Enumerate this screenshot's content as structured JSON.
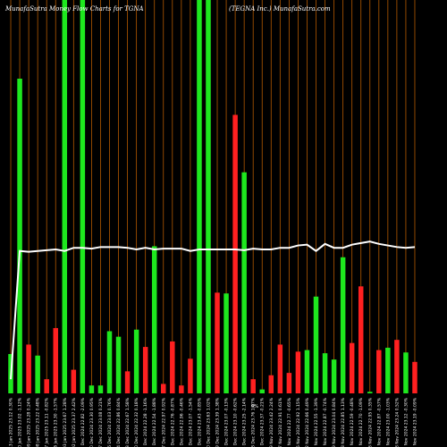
{
  "chart_data": {
    "type": "bar",
    "title_left": "MunafaSutra  Money Flow  Charts for TGNA",
    "title_right": "(TEGNA Inc.) MunafaSutra.com",
    "mid_label": "0%",
    "categories": [
      "Mon 13 Jan 2025 23.12 0.30%",
      "Fri 10 Jan 2025 23.02 -1.12%",
      "Thu 09 Jan 2025 23.28 0.24%",
      "Wed 08 Jan 2025 23.22 0.48%",
      "Tue 07 Jan 2025 23.11 -0.82%",
      "Mon 06 Jan 2025 23.30 -1.57%",
      "Fri 03 Jan 2025 23.67 1.28%",
      "Thu 02 Jan 2025 23.37 2.42%",
      "Tue 31 Dec 2024 22.82 -2.09%",
      "Mon 30 Dec 2024 23.30 0.95%",
      "Fri 27 Dec 2024 23.08 0.21%",
      "Thu 26 Dec 2024 23.03 0.76%",
      "Tue 24 Dec 2024 22.86 0.84%",
      "Mon 23 Dec 2024 22.67 1.58%",
      "Fri 20 Dec 2024 22.32 0.18%",
      "Thu 19 Dec 2024 22.28 -1.16%",
      "Wed 18 Dec 2024 22.54 -1.88%",
      "Tue 17 Dec 2024 22.97 0.92%",
      "Mon 16 Dec 2024 22.76 -0.87%",
      "Fri 13 Dec 2024 22.96 -0.46%",
      "Thu 12 Dec 2024 23.07 -1.54%",
      "Wed 11 Dec 2024 23.43 -0.85%",
      "Tue 10 Dec 2024 23.63 1.02%",
      "Mon 09 Dec 2024 23.39 1.38%",
      "Fri 06 Dec 2024 23.07 -0.13%",
      "Thu 05 Dec 2024 23.10 -0.62%",
      "Wed 04 Dec 2024 23.25 -2.14%",
      "Tue 03 Dec 2024 23.76 1.67%",
      "Mon 02 Dec 2024 23.37 -0.21%",
      "Fri 29 Nov 2024 23.42 2.24%",
      "Wed 27 Nov 2024 22.91 0.61%",
      "Tue 26 Nov 2024 22.77 -0.65%",
      "Mon 25 Nov 2024 22.92 1.15%",
      "Fri 22 Nov 2024 22.66 0.49%",
      "Thu 21 Nov 2024 22.55 -1.39%",
      "Wed 20 Nov 2024 22.87 -0.74%",
      "Tue 19 Nov 2024 23.04 0.84%",
      "Mon 18 Nov 2024 22.85 1.13%",
      "Fri 15 Nov 2024 22.59 -0.48%",
      "Thu 14 Nov 2024 22.70 -1.09%",
      "Wed 13 Nov 2024 22.95 0.35%",
      "Tue 12 Nov 2024 22.87 -0.57%",
      "Mon 11 Nov 2024 23.00 -1.03%",
      "Fri 08 Nov 2024 23.24 0.52%",
      "Thu 07 Nov 2024 23.12 -0.30%",
      "Wed 06 Nov 2024 23.19 -0.09%"
    ],
    "series": [
      {
        "values": [
          50,
          400,
          62,
          48,
          18,
          83,
          500,
          30,
          500,
          10,
          10,
          79,
          72,
          28,
          81,
          59,
          187,
          12,
          66,
          10,
          44,
          500,
          500,
          128,
          127,
          354,
          281,
          18,
          5,
          23,
          62,
          26,
          53,
          55,
          123,
          51,
          43,
          173,
          64,
          136,
          2,
          55,
          58,
          68,
          52,
          40
        ],
        "colors": [
          "#1ee81e",
          "#1ee81e",
          "#ff2020",
          "#1ee81e",
          "#ff2020",
          "#ff2020",
          "#1ee81e",
          "#ff2020",
          "#1ee81e",
          "#1ee81e",
          "#1ee81e",
          "#1ee81e",
          "#1ee81e",
          "#ff2020",
          "#1ee81e",
          "#ff2020",
          "#1ee81e",
          "#ff2020",
          "#ff2020",
          "#ff2020",
          "#ff2020",
          "#1ee81e",
          "#1ee81e",
          "#ff2020",
          "#1ee81e",
          "#ff2020",
          "#1ee81e",
          "#ff2020",
          "#1ee81e",
          "#ff2020",
          "#ff2020",
          "#ff2020",
          "#ff2020",
          "#1ee81e",
          "#1ee81e",
          "#1ee81e",
          "#1ee81e",
          "#1ee81e",
          "#ff2020",
          "#ff2020",
          "#1ee81e",
          "#ff2020",
          "#1ee81e",
          "#ff2020",
          "#1ee81e",
          "#ff2020"
        ]
      },
      {
        "values": [
          18,
          181,
          180,
          181,
          182,
          183,
          181,
          185,
          185,
          184,
          186,
          186,
          186,
          185,
          183,
          185,
          183,
          184,
          184,
          184,
          181,
          183,
          183,
          183,
          183,
          183,
          182,
          184,
          183,
          183,
          185,
          185,
          188,
          189,
          181,
          190,
          185,
          185,
          189,
          191,
          193,
          190,
          188,
          186,
          185,
          186
        ],
        "color": "#ffffff"
      }
    ],
    "ylim": [
      0,
      500
    ],
    "colors": {
      "background": "#000000",
      "grid": "#b35900",
      "up": "#1ee81e",
      "down": "#ff2020",
      "line": "#ffffff",
      "text": "#ffffff"
    }
  }
}
